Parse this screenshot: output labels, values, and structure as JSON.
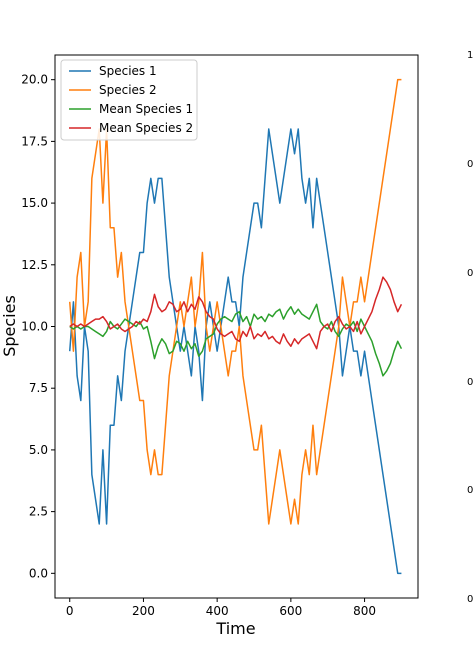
{
  "chart_data": {
    "type": "line",
    "title": "",
    "xlabel": "Time",
    "ylabel": "Species",
    "xlim": [
      -40,
      945
    ],
    "ylim": [
      -1.0,
      21.0
    ],
    "xticks": [
      0,
      200,
      400,
      600,
      800
    ],
    "yticks": [
      0.0,
      2.5,
      5.0,
      7.5,
      10.0,
      12.5,
      15.0,
      17.5,
      20.0
    ],
    "xtick_labels": [
      "0",
      "200",
      "400",
      "600",
      "800"
    ],
    "ytick_labels": [
      "0.0",
      "2.5",
      "5.0",
      "7.5",
      "10.0",
      "12.5",
      "15.0",
      "17.5",
      "20.0"
    ],
    "grid": false,
    "legend_position": "top-left",
    "x": [
      0,
      10,
      20,
      30,
      40,
      50,
      60,
      70,
      80,
      90,
      100,
      110,
      120,
      130,
      140,
      150,
      160,
      170,
      180,
      190,
      200,
      210,
      220,
      230,
      240,
      250,
      260,
      270,
      280,
      290,
      300,
      310,
      320,
      330,
      340,
      350,
      360,
      370,
      380,
      390,
      400,
      410,
      420,
      430,
      440,
      450,
      460,
      470,
      480,
      490,
      500,
      510,
      520,
      530,
      540,
      550,
      560,
      570,
      580,
      590,
      600,
      610,
      620,
      630,
      640,
      650,
      660,
      670,
      680,
      690,
      700,
      710,
      720,
      730,
      740,
      750,
      760,
      770,
      780,
      790,
      800,
      810,
      820,
      830,
      840,
      850,
      860,
      870,
      880,
      890,
      900
    ],
    "series": [
      {
        "name": "Species 1",
        "color": "#1f77b4",
        "values": [
          9,
          11,
          8,
          7,
          10,
          9,
          4,
          3,
          2,
          5,
          2,
          6,
          6,
          8,
          7,
          9,
          10,
          11,
          12,
          13,
          13,
          15,
          16,
          15,
          16,
          16,
          14,
          12,
          11,
          10,
          9,
          10,
          9,
          8,
          10,
          9,
          7,
          10,
          11,
          10,
          9,
          10,
          11,
          12,
          11,
          11,
          10,
          12,
          13,
          14,
          15,
          15,
          14,
          16,
          18,
          17,
          16,
          15,
          16,
          17,
          18,
          17,
          18,
          16,
          15,
          16,
          14,
          16,
          15,
          14,
          13,
          12,
          11,
          10,
          8,
          9,
          10,
          9,
          9,
          8,
          9,
          8,
          7,
          6,
          5,
          4,
          3,
          2,
          1,
          0,
          0
        ]
      },
      {
        "name": "Species 2",
        "color": "#ff7f0e",
        "values": [
          11,
          9,
          12,
          13,
          10,
          11,
          16,
          17,
          18,
          15,
          18,
          14,
          14,
          12,
          13,
          11,
          10,
          9,
          8,
          7,
          7,
          5,
          4,
          5,
          4,
          4,
          6,
          8,
          9,
          10,
          11,
          10,
          11,
          12,
          10,
          11,
          13,
          10,
          9,
          10,
          11,
          10,
          9,
          8,
          9,
          9,
          10,
          8,
          7,
          6,
          5,
          5,
          6,
          4,
          2,
          3,
          4,
          5,
          4,
          3,
          2,
          3,
          2,
          4,
          5,
          4,
          6,
          4,
          5,
          6,
          7,
          8,
          9,
          10,
          12,
          11,
          10,
          11,
          11,
          12,
          11,
          12,
          13,
          14,
          15,
          16,
          17,
          18,
          19,
          20,
          20
        ]
      },
      {
        "name": "Mean Species 1",
        "color": "#2ca02c",
        "values": [
          10.0,
          9.9,
          10.0,
          9.9,
          10.0,
          10.0,
          9.9,
          9.8,
          9.7,
          9.6,
          9.8,
          10.2,
          10.0,
          9.9,
          10.1,
          10.3,
          10.2,
          10.1,
          10.0,
          10.2,
          9.9,
          10.0,
          9.4,
          8.7,
          9.2,
          9.5,
          9.3,
          8.9,
          9.0,
          9.4,
          9.3,
          9.0,
          9.4,
          9.1,
          9.3,
          8.8,
          9.0,
          9.5,
          9.6,
          9.7,
          10.1,
          10.3,
          10.4,
          10.3,
          10.2,
          10.5,
          10.6,
          10.2,
          10.4,
          10.0,
          10.5,
          10.3,
          10.4,
          10.2,
          10.5,
          10.4,
          10.6,
          10.7,
          10.3,
          10.6,
          10.8,
          10.5,
          10.7,
          10.5,
          10.4,
          10.3,
          10.6,
          10.9,
          10.2,
          10.0,
          9.9,
          10.2,
          9.8,
          9.6,
          9.9,
          10.1,
          10.0,
          10.2,
          9.8,
          10.3,
          10.0,
          9.7,
          9.4,
          8.9,
          8.5,
          8.0,
          8.2,
          8.5,
          9.0,
          9.4,
          9.1
        ]
      },
      {
        "name": "Mean Species 2",
        "color": "#d62728",
        "values": [
          10.0,
          10.1,
          10.0,
          10.1,
          10.0,
          10.1,
          10.2,
          10.3,
          10.3,
          10.4,
          10.2,
          9.9,
          10.0,
          10.1,
          9.9,
          9.8,
          9.9,
          10.0,
          10.2,
          10.1,
          10.3,
          10.2,
          10.6,
          11.3,
          10.8,
          10.6,
          10.7,
          11.0,
          10.9,
          10.6,
          10.7,
          11.0,
          10.6,
          10.9,
          10.7,
          11.2,
          11.0,
          10.6,
          10.4,
          10.3,
          9.9,
          9.7,
          9.6,
          9.7,
          9.8,
          9.5,
          9.4,
          9.8,
          9.6,
          10.0,
          9.5,
          9.7,
          9.6,
          9.8,
          9.5,
          9.6,
          9.4,
          9.3,
          9.7,
          9.4,
          9.2,
          9.5,
          9.3,
          9.5,
          9.6,
          9.7,
          9.4,
          9.1,
          9.8,
          10.0,
          10.1,
          9.8,
          10.2,
          10.4,
          10.1,
          9.9,
          10.0,
          9.8,
          10.2,
          9.7,
          10.0,
          10.3,
          10.6,
          11.1,
          11.5,
          12.0,
          11.8,
          11.5,
          11.0,
          10.6,
          10.9
        ]
      }
    ]
  },
  "edge_ticks": [
    "1",
    "0",
    "0",
    "0",
    "0",
    "0"
  ]
}
